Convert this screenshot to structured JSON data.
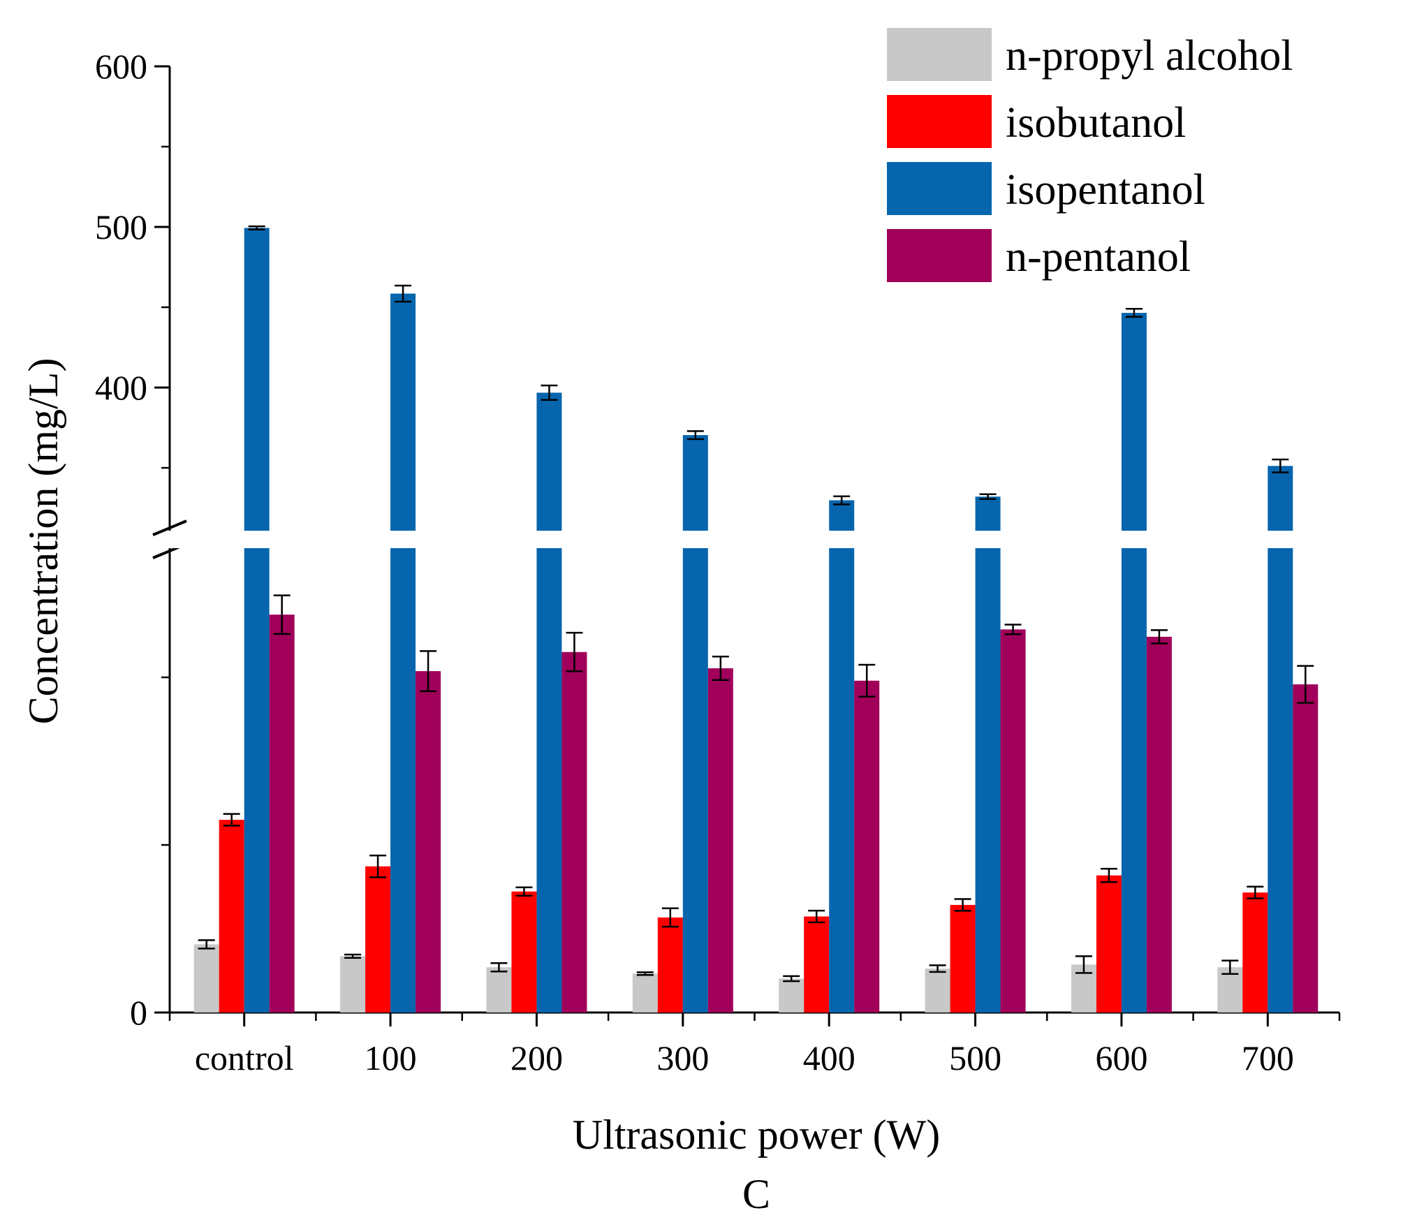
{
  "chart_data": {
    "type": "bar",
    "title": "",
    "caption": "C",
    "xlabel": "Ultrasonic power (W)",
    "ylabel": "Concentration (mg/L)",
    "categories": [
      "control",
      "100",
      "200",
      "300",
      "400",
      "500",
      "600",
      "700"
    ],
    "y_break": {
      "below": 238,
      "above": 333
    },
    "ylim": [
      0,
      600
    ],
    "yticks_labeled": [
      "0",
      "400",
      "500",
      "600"
    ],
    "series": [
      {
        "name": "n-propyl alcohol",
        "color": "#c8c8c8",
        "values": [
          40.7,
          33.6,
          27.0,
          23.2,
          20.2,
          26.2,
          28.6,
          27.0
        ],
        "errors": [
          2.5,
          1.0,
          2.5,
          0.8,
          1.5,
          2.0,
          5.0,
          4.0
        ]
      },
      {
        "name": "isobutanol",
        "color": "#ff0000",
        "values": [
          115.0,
          87.2,
          72.2,
          56.7,
          57.3,
          64.2,
          81.8,
          71.6
        ],
        "errors": [
          3.5,
          6.5,
          2.5,
          5.5,
          3.5,
          3.5,
          4.0,
          3.5
        ]
      },
      {
        "name": "isopentanol",
        "color": "#0665ad",
        "values": [
          499.4,
          458.5,
          396.8,
          370.4,
          329.8,
          332.1,
          446.5,
          351.2
        ],
        "errors": [
          1.0,
          5.0,
          4.5,
          2.5,
          2.5,
          1.5,
          2.5,
          4.0
        ]
      },
      {
        "name": "n-pentanol",
        "color": "#a0005a",
        "values": [
          258.6,
          203.7,
          215.1,
          205.4,
          198.0,
          249.4,
          224.2,
          195.8
        ],
        "errors": [
          12.0,
          12.0,
          11.5,
          7.0,
          9.5,
          3.0,
          4.0,
          11.0
        ]
      }
    ],
    "legend_position": "top-right"
  }
}
